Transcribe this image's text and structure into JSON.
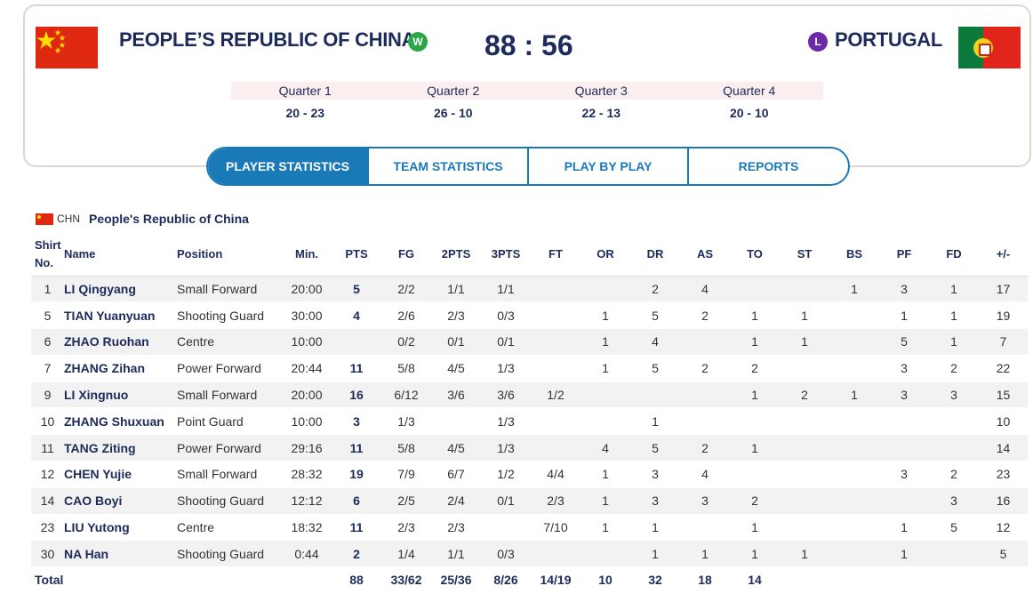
{
  "home": {
    "name": "PEOPLE’S REPUBLIC OF CHINA",
    "result": "W",
    "code": "CHN",
    "full_name": "People's Republic of China"
  },
  "away": {
    "name": "PORTUGAL",
    "result": "L"
  },
  "score": "88 : 56",
  "quarters": [
    {
      "label": "Quarter 1",
      "score": "20 - 23"
    },
    {
      "label": "Quarter 2",
      "score": "26 - 10"
    },
    {
      "label": "Quarter 3",
      "score": "22 - 13"
    },
    {
      "label": "Quarter 4",
      "score": "20 - 10"
    }
  ],
  "tabs": [
    "PLAYER STATISTICS",
    "TEAM STATISTICS",
    "PLAY BY PLAY",
    "REPORTS"
  ],
  "columns": {
    "shirt": "Shirt No.",
    "name": "Name",
    "position": "Position",
    "min": "Min.",
    "pts": "PTS",
    "fg": "FG",
    "p2": "2PTS",
    "p3": "3PTS",
    "ft": "FT",
    "or": "OR",
    "dr": "DR",
    "as": "AS",
    "to": "TO",
    "st": "ST",
    "bs": "BS",
    "pf": "PF",
    "fd": "FD",
    "pm": "+/-"
  },
  "players": [
    {
      "shirt": "1",
      "name": "LI Qingyang",
      "position": "Small Forward",
      "min": "20:00",
      "pts": "5",
      "fg": "2/2",
      "p2": "1/1",
      "p3": "1/1",
      "ft": "",
      "or": "",
      "dr": "2",
      "as": "4",
      "to": "",
      "st": "",
      "bs": "1",
      "pf": "3",
      "fd": "1",
      "pm": "17"
    },
    {
      "shirt": "5",
      "name": "TIAN Yuanyuan",
      "position": "Shooting Guard",
      "min": "30:00",
      "pts": "4",
      "fg": "2/6",
      "p2": "2/3",
      "p3": "0/3",
      "ft": "",
      "or": "1",
      "dr": "5",
      "as": "2",
      "to": "1",
      "st": "1",
      "bs": "",
      "pf": "1",
      "fd": "1",
      "pm": "19"
    },
    {
      "shirt": "6",
      "name": "ZHAO Ruohan",
      "position": "Centre",
      "min": "10:00",
      "pts": "",
      "fg": "0/2",
      "p2": "0/1",
      "p3": "0/1",
      "ft": "",
      "or": "1",
      "dr": "4",
      "as": "",
      "to": "1",
      "st": "1",
      "bs": "",
      "pf": "5",
      "fd": "1",
      "pm": "7"
    },
    {
      "shirt": "7",
      "name": "ZHANG Zihan",
      "position": "Power Forward",
      "min": "20:44",
      "pts": "11",
      "fg": "5/8",
      "p2": "4/5",
      "p3": "1/3",
      "ft": "",
      "or": "1",
      "dr": "5",
      "as": "2",
      "to": "2",
      "st": "",
      "bs": "",
      "pf": "3",
      "fd": "2",
      "pm": "22"
    },
    {
      "shirt": "9",
      "name": "LI Xingnuo",
      "position": "Small Forward",
      "min": "20:00",
      "pts": "16",
      "fg": "6/12",
      "p2": "3/6",
      "p3": "3/6",
      "ft": "1/2",
      "or": "",
      "dr": "",
      "as": "",
      "to": "1",
      "st": "2",
      "bs": "1",
      "pf": "3",
      "fd": "3",
      "pm": "15"
    },
    {
      "shirt": "10",
      "name": "ZHANG Shuxuan",
      "position": "Point Guard",
      "min": "10:00",
      "pts": "3",
      "fg": "1/3",
      "p2": "",
      "p3": "1/3",
      "ft": "",
      "or": "",
      "dr": "1",
      "as": "",
      "to": "",
      "st": "",
      "bs": "",
      "pf": "",
      "fd": "",
      "pm": "10"
    },
    {
      "shirt": "11",
      "name": "TANG Ziting",
      "position": "Power Forward",
      "min": "29:16",
      "pts": "11",
      "fg": "5/8",
      "p2": "4/5",
      "p3": "1/3",
      "ft": "",
      "or": "4",
      "dr": "5",
      "as": "2",
      "to": "1",
      "st": "",
      "bs": "",
      "pf": "",
      "fd": "",
      "pm": "14"
    },
    {
      "shirt": "12",
      "name": "CHEN Yujie",
      "position": "Small Forward",
      "min": "28:32",
      "pts": "19",
      "fg": "7/9",
      "p2": "6/7",
      "p3": "1/2",
      "ft": "4/4",
      "or": "1",
      "dr": "3",
      "as": "4",
      "to": "",
      "st": "",
      "bs": "",
      "pf": "3",
      "fd": "2",
      "pm": "23"
    },
    {
      "shirt": "14",
      "name": "CAO Boyi",
      "position": "Shooting Guard",
      "min": "12:12",
      "pts": "6",
      "fg": "2/5",
      "p2": "2/4",
      "p3": "0/1",
      "ft": "2/3",
      "or": "1",
      "dr": "3",
      "as": "3",
      "to": "2",
      "st": "",
      "bs": "",
      "pf": "",
      "fd": "3",
      "pm": "16"
    },
    {
      "shirt": "23",
      "name": "LIU Yutong",
      "position": "Centre",
      "min": "18:32",
      "pts": "11",
      "fg": "2/3",
      "p2": "2/3",
      "p3": "",
      "ft": "7/10",
      "or": "1",
      "dr": "1",
      "as": "",
      "to": "1",
      "st": "",
      "bs": "",
      "pf": "1",
      "fd": "5",
      "pm": "12"
    },
    {
      "shirt": "30",
      "name": "NA Han",
      "position": "Shooting Guard",
      "min": "0:44",
      "pts": "2",
      "fg": "1/4",
      "p2": "1/1",
      "p3": "0/3",
      "ft": "",
      "or": "",
      "dr": "1",
      "as": "1",
      "to": "1",
      "st": "1",
      "bs": "",
      "pf": "1",
      "fd": "",
      "pm": "5"
    }
  ],
  "totals": {
    "label": "Total",
    "pts": "88",
    "fg": "33/62",
    "p2": "25/36",
    "p3": "8/26",
    "ft": "14/19",
    "or": "10",
    "dr": "32",
    "as": "18",
    "to": "14",
    "st": "",
    "bs": "",
    "pf": "",
    "fd": "",
    "pm": ""
  },
  "colors": {
    "navy": "#1c2b5a",
    "accent": "#1a7ab8",
    "win": "#29a744",
    "loss": "#6b2aa8",
    "quarter_bg": "#fbeeee"
  }
}
